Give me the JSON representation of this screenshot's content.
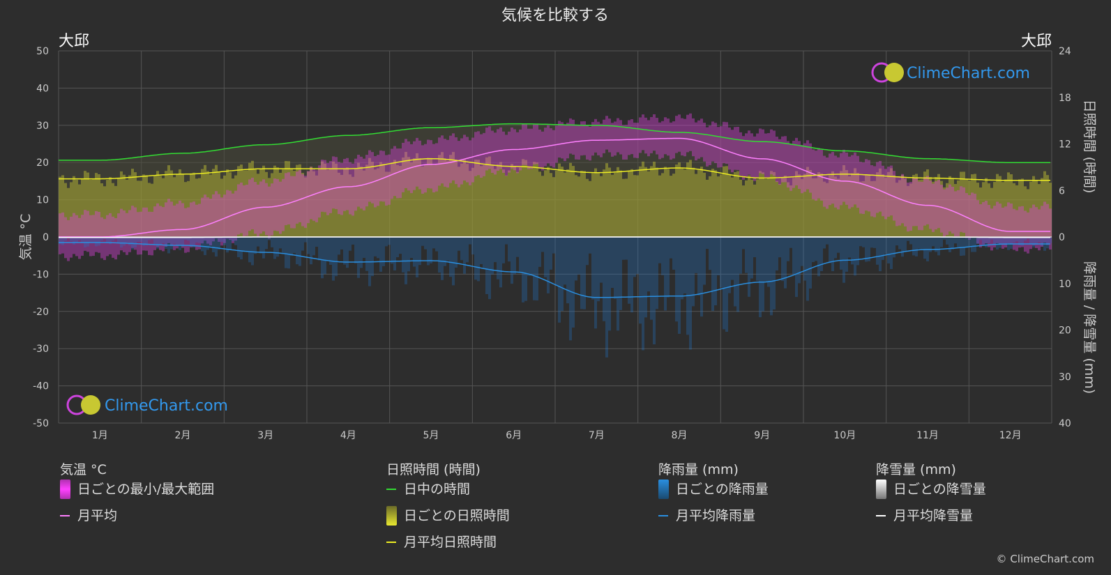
{
  "page": {
    "title": "気候を比較する",
    "location_left": "大邱",
    "location_right": "大邱",
    "watermark": "ClimeChart.com",
    "copyright": "© ClimeChart.com"
  },
  "axes": {
    "left_label": "気温 °C",
    "right_top_label": "日照時間 (時間)",
    "right_bottom_label": "降雨量 / 降雪量 (mm)",
    "left_ticks": [
      "50",
      "40",
      "30",
      "20",
      "10",
      "0",
      "-10",
      "-20",
      "-30",
      "-40",
      "-50"
    ],
    "right_sun_ticks": [
      "24",
      "18",
      "12",
      "6",
      "0"
    ],
    "right_precip_ticks": [
      "10",
      "20",
      "30",
      "40"
    ]
  },
  "legend": {
    "temp": {
      "title": "気温 °C",
      "range": "日ごとの最小/最大範囲",
      "avg": "月平均"
    },
    "sun": {
      "title": "日照時間 (時間)",
      "daylight": "日中の時間",
      "daily": "日ごとの日照時間",
      "avg": "月平均日照時間"
    },
    "rain": {
      "title": "降雨量 (mm)",
      "daily": "日ごとの降雨量",
      "avg": "月平均降雨量"
    },
    "snow": {
      "title": "降雪量 (mm)",
      "daily": "日ごとの降雪量",
      "avg": "月平均降雪量"
    }
  },
  "colors": {
    "background": "#2d2d2d",
    "grid": "#555555",
    "temp_range": "#e040e0",
    "temp_avg": "#ff80ff",
    "daylight": "#33dd33",
    "sunshine": "#c8c832",
    "sunshine_avg": "#eeee22",
    "rain": "#2277cc",
    "rain_avg": "#2a8fe0",
    "snow_avg": "#ffffff",
    "watermark": "#3399ee"
  },
  "chart_data": {
    "type": "area",
    "categories": [
      "1月",
      "2月",
      "3月",
      "4月",
      "5月",
      "6月",
      "7月",
      "8月",
      "9月",
      "10月",
      "11月",
      "12月"
    ],
    "ylim_temp": [
      -50,
      50
    ],
    "ylim_sun": [
      0,
      24
    ],
    "ylim_precip": [
      0,
      40
    ],
    "grid": true,
    "series": [
      {
        "name": "月平均",
        "axis": "temp",
        "values": [
          0,
          2,
          8,
          13.5,
          19.5,
          23.5,
          26,
          26.5,
          21,
          15,
          8.5,
          1.5
        ]
      },
      {
        "name": "日中の時間",
        "axis": "sun",
        "values": [
          9.9,
          10.8,
          11.9,
          13.1,
          14.1,
          14.6,
          14.4,
          13.5,
          12.3,
          11.1,
          10.1,
          9.6
        ]
      },
      {
        "name": "月平均日照時間",
        "axis": "sun",
        "values": [
          7.5,
          8.1,
          8.8,
          8.8,
          10.1,
          9.1,
          8.3,
          8.9,
          7.6,
          8.1,
          7.6,
          7.3
        ]
      },
      {
        "name": "月平均降雨量",
        "axis": "precip",
        "values": [
          1.2,
          1.8,
          3.3,
          5.4,
          5.1,
          7.5,
          13.0,
          12.7,
          9.7,
          5.0,
          2.7,
          1.5
        ]
      },
      {
        "name": "月平均降雪量",
        "axis": "precip",
        "values": [
          0.1,
          0.1,
          0,
          0,
          0,
          0,
          0,
          0,
          0,
          0,
          0,
          0.1
        ]
      }
    ],
    "temp_range": {
      "name": "日ごとの最小/最大範囲",
      "min": [
        -5,
        -3,
        1,
        7,
        13,
        18,
        22,
        22,
        16,
        8,
        2,
        -3
      ],
      "max": [
        6,
        9,
        15,
        21,
        26,
        29,
        31,
        32,
        28,
        22,
        15,
        8
      ]
    }
  }
}
